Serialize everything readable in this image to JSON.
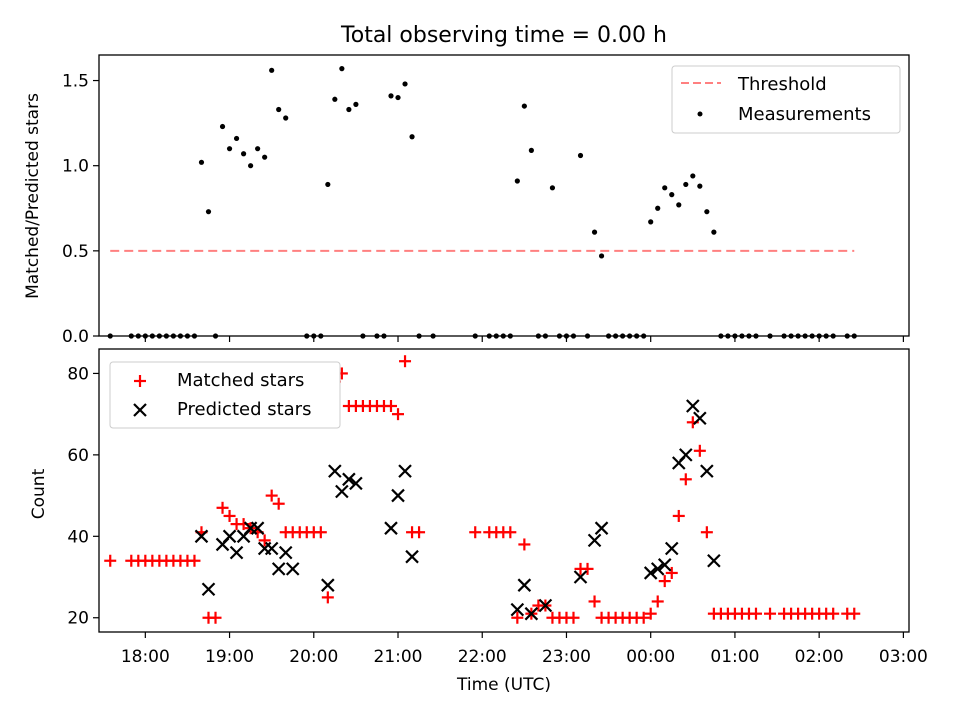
{
  "chart_data": [
    {
      "type": "scatter",
      "title": "Total observing time = 0.00 h",
      "xlabel": "",
      "ylabel": "Matched/Predicted stars",
      "ylim": [
        0,
        1.65
      ],
      "xlim": [
        "17:27",
        "03:04"
      ],
      "yticks": [
        "0.0",
        "0.5",
        "1.0",
        "1.5"
      ],
      "legend_position": "upper right",
      "series": [
        {
          "name": "Threshold",
          "kind": "dashed-line",
          "color": "#ff8080",
          "y": 0.5,
          "x_range": [
            "17:35",
            "02:25"
          ]
        },
        {
          "name": "Measurements",
          "kind": "points",
          "color": "#000000",
          "points": [
            [
              "17:35",
              0
            ],
            [
              "17:50",
              0
            ],
            [
              "17:55",
              0
            ],
            [
              "18:00",
              0
            ],
            [
              "18:05",
              0
            ],
            [
              "18:10",
              0
            ],
            [
              "18:15",
              0
            ],
            [
              "18:20",
              0
            ],
            [
              "18:25",
              0
            ],
            [
              "18:30",
              0
            ],
            [
              "18:35",
              0
            ],
            [
              "18:40",
              1.02
            ],
            [
              "18:45",
              0.73
            ],
            [
              "18:50",
              0
            ],
            [
              "18:55",
              1.23
            ],
            [
              "19:00",
              1.1
            ],
            [
              "19:05",
              1.16
            ],
            [
              "19:10",
              1.07
            ],
            [
              "19:15",
              1.0
            ],
            [
              "19:20",
              1.1
            ],
            [
              "19:25",
              1.05
            ],
            [
              "19:30",
              1.56
            ],
            [
              "19:35",
              1.33
            ],
            [
              "19:40",
              1.28
            ],
            [
              "19:55",
              0
            ],
            [
              "20:00",
              0
            ],
            [
              "20:05",
              0
            ],
            [
              "20:10",
              0.89
            ],
            [
              "20:15",
              1.39
            ],
            [
              "20:20",
              1.57
            ],
            [
              "20:25",
              1.33
            ],
            [
              "20:30",
              1.36
            ],
            [
              "20:35",
              0
            ],
            [
              "20:45",
              0
            ],
            [
              "20:50",
              0
            ],
            [
              "20:55",
              1.41
            ],
            [
              "21:00",
              1.4
            ],
            [
              "21:05",
              1.48
            ],
            [
              "21:10",
              1.17
            ],
            [
              "21:15",
              0
            ],
            [
              "21:25",
              0
            ],
            [
              "21:55",
              0
            ],
            [
              "22:05",
              0
            ],
            [
              "22:10",
              0
            ],
            [
              "22:15",
              0
            ],
            [
              "22:20",
              0
            ],
            [
              "22:25",
              0.91
            ],
            [
              "22:30",
              1.35
            ],
            [
              "22:35",
              1.09
            ],
            [
              "22:40",
              0
            ],
            [
              "22:45",
              0
            ],
            [
              "22:50",
              0.87
            ],
            [
              "22:55",
              0
            ],
            [
              "23:00",
              0
            ],
            [
              "23:05",
              0
            ],
            [
              "23:10",
              1.06
            ],
            [
              "23:15",
              0
            ],
            [
              "23:20",
              0.61
            ],
            [
              "23:25",
              0.47
            ],
            [
              "23:30",
              0
            ],
            [
              "23:35",
              0
            ],
            [
              "23:40",
              0
            ],
            [
              "23:45",
              0
            ],
            [
              "23:50",
              0
            ],
            [
              "23:55",
              0
            ],
            [
              "00:00",
              0.67
            ],
            [
              "00:05",
              0.75
            ],
            [
              "00:10",
              0.87
            ],
            [
              "00:15",
              0.83
            ],
            [
              "00:20",
              0.77
            ],
            [
              "00:25",
              0.89
            ],
            [
              "00:30",
              0.94
            ],
            [
              "00:35",
              0.88
            ],
            [
              "00:40",
              0.73
            ],
            [
              "00:45",
              0.61
            ],
            [
              "00:50",
              0
            ],
            [
              "00:55",
              0
            ],
            [
              "01:00",
              0
            ],
            [
              "01:05",
              0
            ],
            [
              "01:10",
              0
            ],
            [
              "01:15",
              0
            ],
            [
              "01:25",
              0
            ],
            [
              "01:35",
              0
            ],
            [
              "01:40",
              0
            ],
            [
              "01:45",
              0
            ],
            [
              "01:50",
              0
            ],
            [
              "01:55",
              0
            ],
            [
              "02:00",
              0
            ],
            [
              "02:05",
              0
            ],
            [
              "02:10",
              0
            ],
            [
              "02:20",
              0
            ],
            [
              "02:25",
              0
            ]
          ]
        }
      ]
    },
    {
      "type": "scatter",
      "title": "",
      "xlabel": "Time (UTC)",
      "ylabel": "Count",
      "ylim": [
        16.5,
        86
      ],
      "xlim": [
        "17:27",
        "03:04"
      ],
      "yticks": [
        "20",
        "40",
        "60",
        "80"
      ],
      "xticks": [
        "18:00",
        "19:00",
        "20:00",
        "21:00",
        "22:00",
        "23:00",
        "00:00",
        "01:00",
        "02:00",
        "03:00"
      ],
      "legend_position": "upper left",
      "series": [
        {
          "name": "Matched stars",
          "marker": "plus",
          "color": "#ff0000",
          "points": [
            [
              "17:35",
              34
            ],
            [
              "17:50",
              34
            ],
            [
              "17:55",
              34
            ],
            [
              "18:00",
              34
            ],
            [
              "18:05",
              34
            ],
            [
              "18:10",
              34
            ],
            [
              "18:15",
              34
            ],
            [
              "18:20",
              34
            ],
            [
              "18:25",
              34
            ],
            [
              "18:30",
              34
            ],
            [
              "18:35",
              34
            ],
            [
              "18:40",
              41
            ],
            [
              "18:45",
              20
            ],
            [
              "18:50",
              20
            ],
            [
              "18:55",
              47
            ],
            [
              "19:00",
              45
            ],
            [
              "19:05",
              43
            ],
            [
              "19:10",
              43
            ],
            [
              "19:15",
              42
            ],
            [
              "19:20",
              41
            ],
            [
              "19:25",
              39
            ],
            [
              "19:30",
              50
            ],
            [
              "19:35",
              48
            ],
            [
              "19:40",
              41
            ],
            [
              "19:45",
              41
            ],
            [
              "19:50",
              41
            ],
            [
              "19:55",
              41
            ],
            [
              "20:00",
              41
            ],
            [
              "20:05",
              41
            ],
            [
              "20:10",
              25
            ],
            [
              "20:15",
              78
            ],
            [
              "20:20",
              80
            ],
            [
              "20:25",
              72
            ],
            [
              "20:30",
              72
            ],
            [
              "20:35",
              72
            ],
            [
              "20:40",
              72
            ],
            [
              "20:45",
              72
            ],
            [
              "20:50",
              72
            ],
            [
              "20:55",
              72
            ],
            [
              "21:00",
              70
            ],
            [
              "21:05",
              83
            ],
            [
              "21:10",
              41
            ],
            [
              "21:15",
              41
            ],
            [
              "21:55",
              41
            ],
            [
              "22:05",
              41
            ],
            [
              "22:10",
              41
            ],
            [
              "22:15",
              41
            ],
            [
              "22:20",
              41
            ],
            [
              "22:25",
              20
            ],
            [
              "22:30",
              38
            ],
            [
              "22:35",
              21
            ],
            [
              "22:40",
              23
            ],
            [
              "22:45",
              23
            ],
            [
              "22:50",
              20
            ],
            [
              "22:55",
              20
            ],
            [
              "23:00",
              20
            ],
            [
              "23:05",
              20
            ],
            [
              "23:10",
              32
            ],
            [
              "23:15",
              32
            ],
            [
              "23:20",
              24
            ],
            [
              "23:25",
              20
            ],
            [
              "23:30",
              20
            ],
            [
              "23:35",
              20
            ],
            [
              "23:40",
              20
            ],
            [
              "23:45",
              20
            ],
            [
              "23:50",
              20
            ],
            [
              "23:55",
              20
            ],
            [
              "00:00",
              21
            ],
            [
              "00:05",
              24
            ],
            [
              "00:10",
              29
            ],
            [
              "00:15",
              31
            ],
            [
              "00:20",
              45
            ],
            [
              "00:25",
              54
            ],
            [
              "00:30",
              68
            ],
            [
              "00:35",
              61
            ],
            [
              "00:40",
              41
            ],
            [
              "00:45",
              21
            ],
            [
              "00:50",
              21
            ],
            [
              "00:55",
              21
            ],
            [
              "01:00",
              21
            ],
            [
              "01:05",
              21
            ],
            [
              "01:10",
              21
            ],
            [
              "01:15",
              21
            ],
            [
              "01:25",
              21
            ],
            [
              "01:35",
              21
            ],
            [
              "01:40",
              21
            ],
            [
              "01:45",
              21
            ],
            [
              "01:50",
              21
            ],
            [
              "01:55",
              21
            ],
            [
              "02:00",
              21
            ],
            [
              "02:05",
              21
            ],
            [
              "02:10",
              21
            ],
            [
              "02:20",
              21
            ],
            [
              "02:25",
              21
            ]
          ]
        },
        {
          "name": "Predicted stars",
          "marker": "x",
          "color": "#000000",
          "points": [
            [
              "18:40",
              40
            ],
            [
              "18:45",
              27
            ],
            [
              "18:55",
              38
            ],
            [
              "19:00",
              40
            ],
            [
              "19:05",
              36
            ],
            [
              "19:10",
              40
            ],
            [
              "19:15",
              42
            ],
            [
              "19:20",
              42
            ],
            [
              "19:25",
              37
            ],
            [
              "19:30",
              37
            ],
            [
              "19:35",
              32
            ],
            [
              "19:40",
              36
            ],
            [
              "19:45",
              32
            ],
            [
              "20:10",
              28
            ],
            [
              "20:15",
              56
            ],
            [
              "20:20",
              51
            ],
            [
              "20:25",
              54
            ],
            [
              "20:30",
              53
            ],
            [
              "20:55",
              42
            ],
            [
              "21:00",
              50
            ],
            [
              "21:05",
              56
            ],
            [
              "21:10",
              35
            ],
            [
              "22:25",
              22
            ],
            [
              "22:30",
              28
            ],
            [
              "22:35",
              21
            ],
            [
              "22:45",
              23
            ],
            [
              "23:10",
              30
            ],
            [
              "23:20",
              39
            ],
            [
              "23:25",
              42
            ],
            [
              "00:00",
              31
            ],
            [
              "00:05",
              32
            ],
            [
              "00:10",
              33
            ],
            [
              "00:15",
              37
            ],
            [
              "00:20",
              58
            ],
            [
              "00:25",
              60
            ],
            [
              "00:30",
              72
            ],
            [
              "00:35",
              69
            ],
            [
              "00:40",
              56
            ],
            [
              "00:45",
              34
            ]
          ]
        }
      ]
    }
  ]
}
